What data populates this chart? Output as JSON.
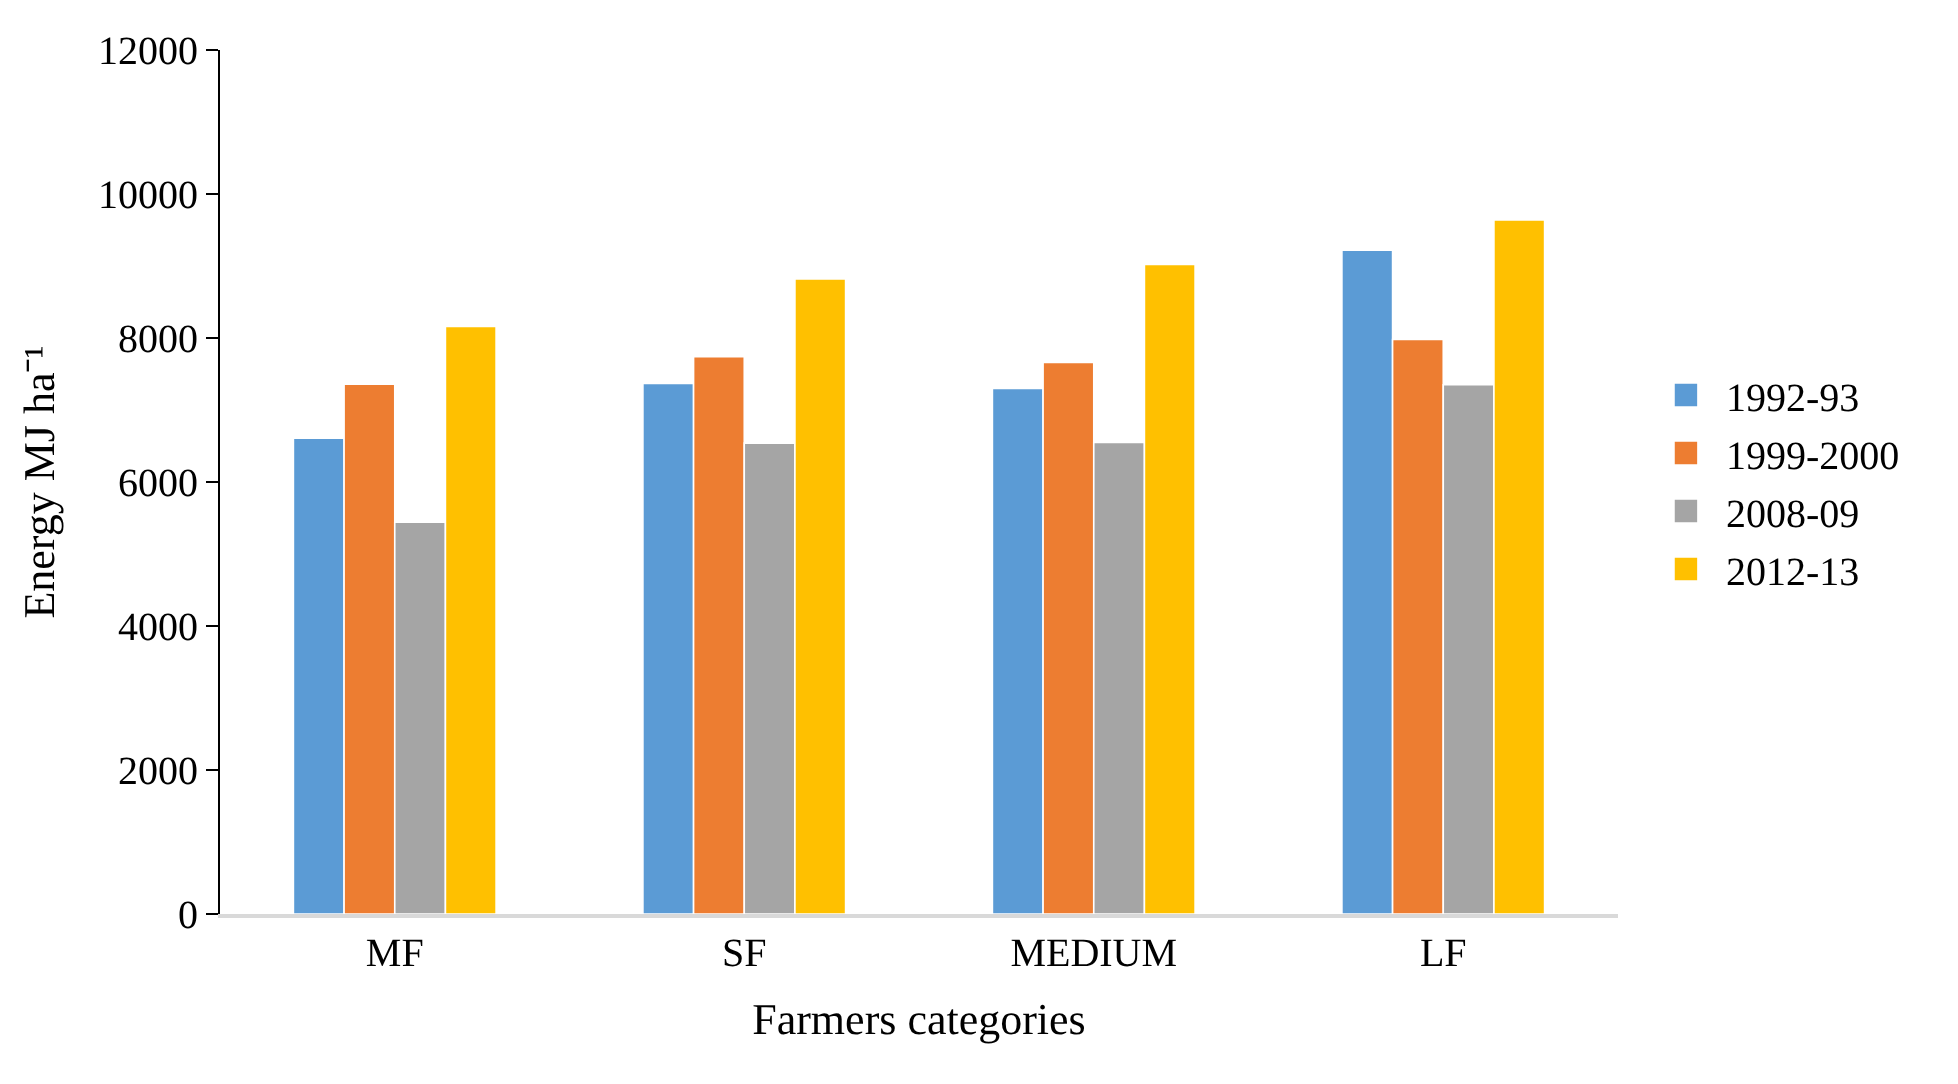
{
  "chart_data": {
    "type": "bar",
    "xlabel": "Farmers categories",
    "ylabel": "Energy MJ ha⁻¹",
    "categories": [
      "MF",
      "SF",
      "MEDIUM",
      "LF"
    ],
    "series": [
      {
        "name": "1992-93",
        "color": "#5b9bd5",
        "values": [
          6610,
          7370,
          7300,
          9220
        ]
      },
      {
        "name": "1999-2000",
        "color": "#ed7d31",
        "values": [
          7360,
          7740,
          7660,
          7980
        ]
      },
      {
        "name": "2008-09",
        "color": "#a5a5a5",
        "values": [
          5440,
          6540,
          6550,
          7350
        ]
      },
      {
        "name": "2012-13",
        "color": "#ffc000",
        "values": [
          8160,
          8820,
          9020,
          9640
        ]
      }
    ],
    "ylim": [
      0,
      12000
    ],
    "yticks": [
      0,
      2000,
      4000,
      6000,
      8000,
      10000,
      12000
    ],
    "grid": false,
    "legend": "right"
  }
}
